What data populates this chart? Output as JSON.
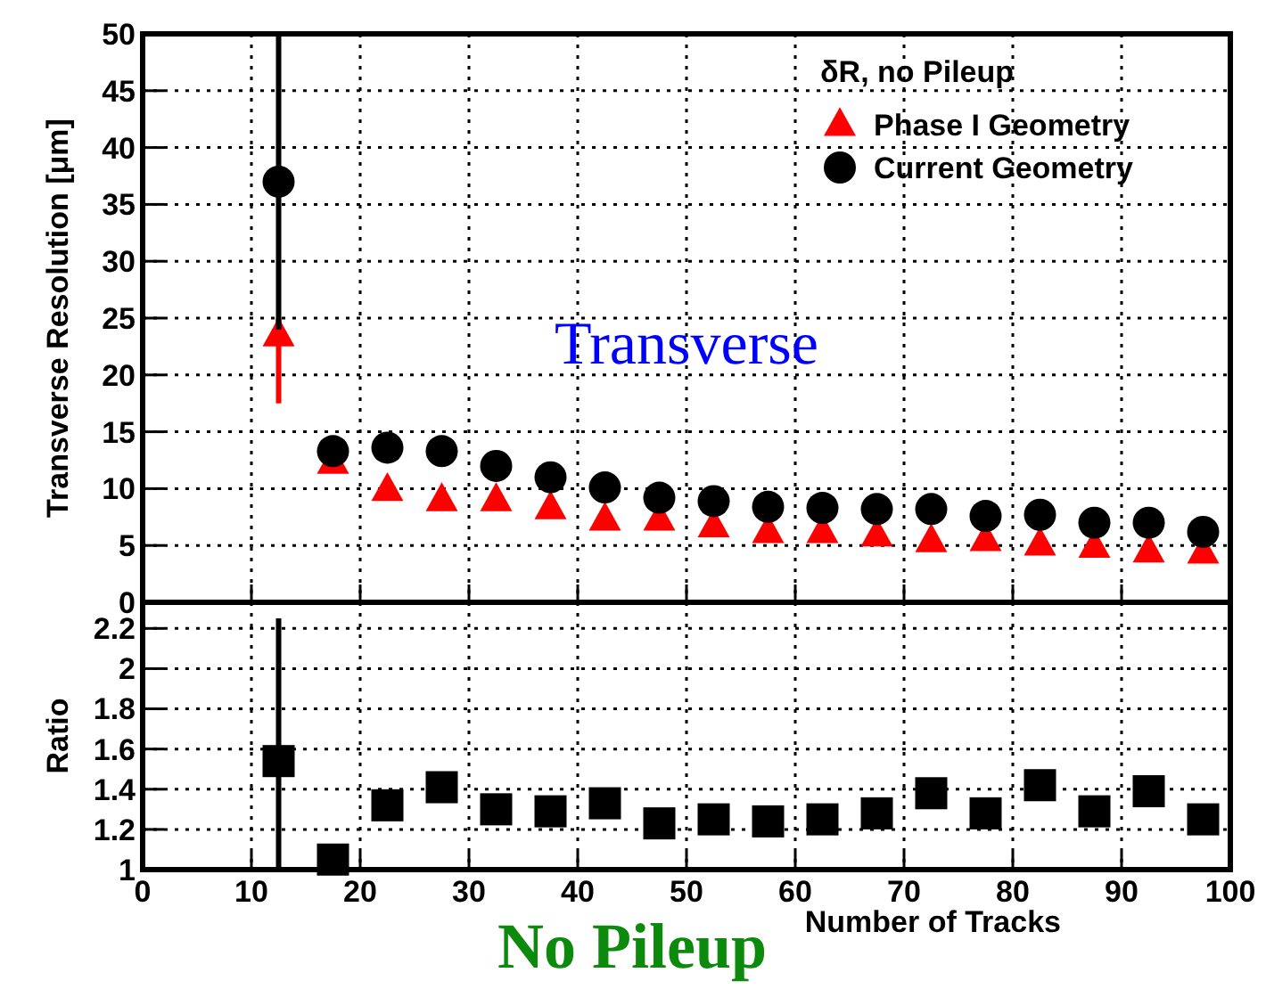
{
  "chart_data": [
    {
      "type": "scatter",
      "ylabel": "Transverse Resolution [μm]",
      "legend_title": "δR, no Pileup",
      "legend": "top right",
      "grid": true,
      "tick_labels": "y",
      "annotations": [
        "Transverse"
      ],
      "x": [
        12.5,
        17.5,
        22.5,
        27.5,
        32.5,
        37.5,
        42.5,
        47.5,
        52.5,
        57.5,
        62.5,
        67.5,
        72.5,
        77.5,
        82.5,
        87.5,
        92.5,
        97.5
      ],
      "xlim": [
        0,
        100
      ],
      "xticks": [
        0,
        10,
        20,
        30,
        40,
        50,
        60,
        70,
        80,
        90,
        100
      ],
      "ylim": [
        0,
        50
      ],
      "yticks": [
        0,
        5,
        10,
        15,
        20,
        25,
        30,
        35,
        40,
        45,
        50
      ],
      "series": [
        {
          "name": "Phase I Geometry",
          "color": "#ff0000",
          "marker": "triangle",
          "values": [
            23.5,
            12.3,
            9.9,
            9.0,
            9.0,
            8.3,
            7.3,
            7.3,
            6.7,
            6.2,
            6.2,
            5.9,
            5.4,
            5.5,
            5.1,
            4.9,
            4.5,
            4.4
          ],
          "errors": [
            [
              17.5,
              25
            ],
            null,
            null,
            null,
            null,
            null,
            null,
            null,
            null,
            null,
            null,
            null,
            null,
            null,
            null,
            null,
            null,
            null
          ]
        },
        {
          "name": "Current Geometry",
          "color": "#000000",
          "marker": "circle",
          "values": [
            37,
            13.3,
            13.6,
            13.3,
            12.0,
            11.0,
            10.1,
            9.2,
            8.9,
            8.4,
            8.3,
            8.2,
            8.2,
            7.6,
            7.7,
            7.0,
            7.0,
            6.2
          ],
          "errors": [
            [
              24,
              50
            ],
            null,
            null,
            null,
            null,
            null,
            null,
            null,
            null,
            null,
            null,
            null,
            null,
            null,
            null,
            null,
            null,
            null
          ]
        }
      ]
    },
    {
      "type": "scatter",
      "xlabel": "Number of Tracks",
      "ylabel": "Ratio",
      "grid": true,
      "marker": "square",
      "annotations": [
        "No Pileup"
      ],
      "x": [
        12.5,
        17.5,
        22.5,
        27.5,
        32.5,
        37.5,
        42.5,
        47.5,
        52.5,
        57.5,
        62.5,
        67.5,
        72.5,
        77.5,
        82.5,
        87.5,
        92.5,
        97.5
      ],
      "xlim": [
        0,
        100
      ],
      "xticks": [
        0,
        10,
        20,
        30,
        40,
        50,
        60,
        70,
        80,
        90,
        100
      ],
      "ylim": [
        1,
        2.33
      ],
      "yticks": [
        1,
        1.2,
        1.4,
        1.6,
        1.8,
        2,
        2.2
      ],
      "series": [
        {
          "color": "#000000",
          "values": [
            1.54,
            1.05,
            1.32,
            1.41,
            1.3,
            1.29,
            1.33,
            1.23,
            1.25,
            1.24,
            1.25,
            1.28,
            1.38,
            1.28,
            1.42,
            1.29,
            1.39,
            1.25
          ],
          "errors": [
            [
              1,
              2.25
            ],
            null,
            null,
            null,
            null,
            null,
            null,
            null,
            null,
            null,
            null,
            null,
            null,
            null,
            null,
            null,
            null,
            null
          ]
        }
      ]
    }
  ]
}
